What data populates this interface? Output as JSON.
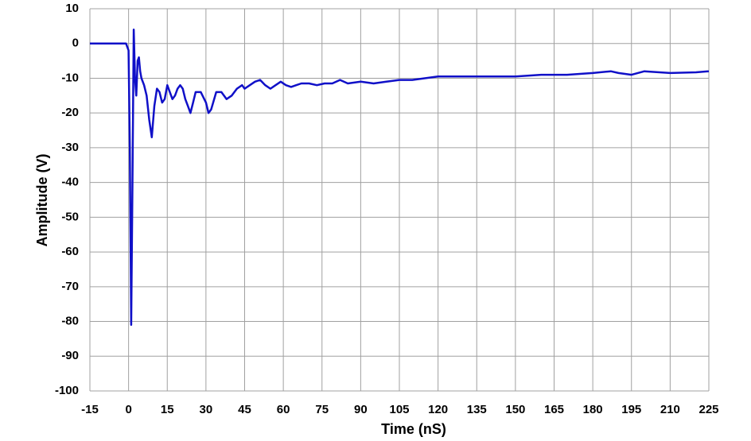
{
  "chart_data": {
    "type": "line",
    "x_label": "Time (nS)",
    "y_label": "Amplitude (V)",
    "x": [
      -15,
      -10,
      -5,
      -1,
      -0.5,
      0,
      0.5,
      1,
      1.5,
      2,
      2.5,
      3,
      3.5,
      4,
      4.5,
      5,
      6,
      7,
      8,
      9,
      10,
      11,
      12,
      13,
      14,
      15,
      16,
      17,
      18,
      19,
      20,
      21,
      22,
      23,
      24,
      25,
      26,
      28,
      30,
      31,
      32,
      34,
      36,
      38,
      40,
      42,
      44,
      45,
      47,
      49,
      51,
      53,
      55,
      57,
      59,
      61,
      63,
      65,
      67,
      70,
      73,
      76,
      79,
      82,
      85,
      90,
      95,
      100,
      105,
      110,
      120,
      130,
      140,
      150,
      160,
      170,
      180,
      187,
      190,
      195,
      200,
      210,
      220,
      225
    ],
    "series": [
      {
        "name": "Amplitude",
        "color": "#1010c8",
        "values": [
          0,
          0,
          0,
          0,
          -1,
          -2,
          -30,
          -81,
          -40,
          4,
          -10,
          -15,
          -5,
          -4,
          -8,
          -10,
          -12,
          -15,
          -22,
          -27,
          -18,
          -13,
          -14,
          -17,
          -16,
          -12,
          -14,
          -16,
          -15,
          -13,
          -12,
          -13,
          -16,
          -18,
          -20,
          -17,
          -14,
          -14,
          -17,
          -20,
          -19,
          -14,
          -14,
          -16,
          -15,
          -13,
          -12,
          -13,
          -12,
          -11,
          -10.5,
          -12,
          -13,
          -12,
          -11,
          -12,
          -12.5,
          -12,
          -11.5,
          -11.5,
          -12,
          -11.5,
          -11.5,
          -10.5,
          -11.5,
          -11,
          -11.5,
          -11,
          -10.5,
          -10.5,
          -9.5,
          -9.5,
          -9.5,
          -9.5,
          -9,
          -9,
          -8.5,
          -8,
          -8.5,
          -9,
          -8,
          -8.5,
          -8.3,
          -8
        ]
      }
    ],
    "xlim": [
      -15,
      225
    ],
    "xticks": [
      -15,
      0,
      15,
      30,
      45,
      60,
      75,
      90,
      105,
      120,
      135,
      150,
      165,
      180,
      195,
      210,
      225
    ],
    "ylim": [
      -100,
      10
    ],
    "yticks": [
      10,
      0,
      -10,
      -20,
      -30,
      -40,
      -50,
      -60,
      -70,
      -80,
      -90,
      -100
    ],
    "grid": true
  }
}
